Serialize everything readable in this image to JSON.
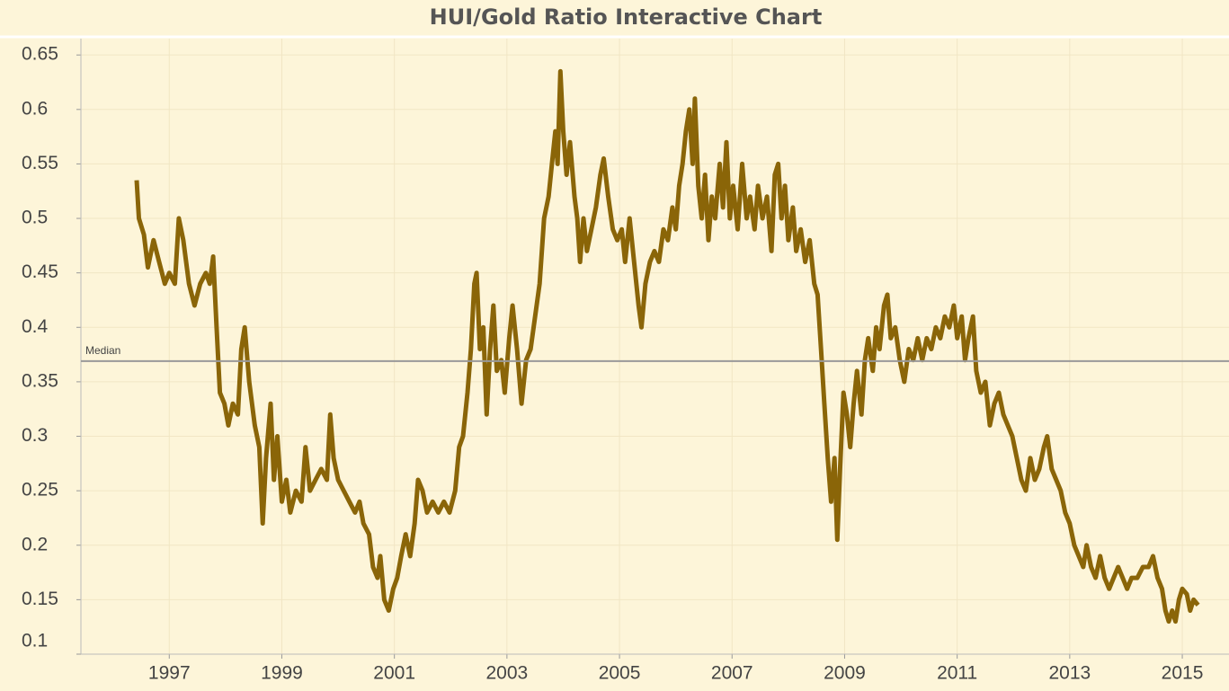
{
  "chart_data": {
    "type": "line",
    "title": "HUI/Gold Ratio Interactive Chart",
    "x": [
      1996.42,
      1996.46,
      1996.55,
      1996.62,
      1996.72,
      1996.82,
      1996.92,
      1997.0,
      1997.1,
      1997.17,
      1997.25,
      1997.35,
      1997.45,
      1997.55,
      1997.65,
      1997.72,
      1997.78,
      1997.84,
      1997.9,
      1997.98,
      1998.05,
      1998.13,
      1998.22,
      1998.28,
      1998.34,
      1998.42,
      1998.52,
      1998.6,
      1998.66,
      1998.72,
      1998.8,
      1998.86,
      1998.92,
      1999.0,
      1999.08,
      1999.15,
      1999.25,
      1999.35,
      1999.42,
      1999.5,
      1999.6,
      1999.7,
      1999.8,
      1999.86,
      1999.92,
      2000.0,
      2000.1,
      2000.2,
      2000.3,
      2000.38,
      2000.45,
      2000.55,
      2000.62,
      2000.7,
      2000.75,
      2000.82,
      2000.9,
      2000.98,
      2001.05,
      2001.12,
      2001.2,
      2001.28,
      2001.36,
      2001.42,
      2001.5,
      2001.58,
      2001.68,
      2001.78,
      2001.88,
      2001.98,
      2002.08,
      2002.15,
      2002.22,
      2002.3,
      2002.36,
      2002.42,
      2002.46,
      2002.52,
      2002.58,
      2002.64,
      2002.7,
      2002.76,
      2002.82,
      2002.9,
      2002.96,
      2003.04,
      2003.1,
      2003.18,
      2003.26,
      2003.34,
      2003.42,
      2003.5,
      2003.58,
      2003.66,
      2003.74,
      2003.8,
      2003.86,
      2003.9,
      2003.95,
      2004.0,
      2004.06,
      2004.12,
      2004.2,
      2004.25,
      2004.3,
      2004.36,
      2004.42,
      2004.5,
      2004.58,
      2004.66,
      2004.72,
      2004.8,
      2004.88,
      2004.96,
      2005.04,
      2005.1,
      2005.18,
      2005.26,
      2005.34,
      2005.39,
      2005.46,
      2005.54,
      2005.62,
      2005.7,
      2005.78,
      2005.86,
      2005.94,
      2006.0,
      2006.06,
      2006.12,
      2006.18,
      2006.24,
      2006.3,
      2006.34,
      2006.4,
      2006.46,
      2006.52,
      2006.58,
      2006.64,
      2006.7,
      2006.78,
      2006.84,
      2006.9,
      2006.96,
      2007.02,
      2007.1,
      2007.18,
      2007.26,
      2007.32,
      2007.4,
      2007.46,
      2007.54,
      2007.62,
      2007.7,
      2007.76,
      2007.82,
      2007.88,
      2007.94,
      2008.0,
      2008.08,
      2008.14,
      2008.22,
      2008.3,
      2008.38,
      2008.46,
      2008.52,
      2008.58,
      2008.64,
      2008.7,
      2008.76,
      2008.82,
      2008.87,
      2008.92,
      2008.98,
      2009.04,
      2009.1,
      2009.16,
      2009.22,
      2009.3,
      2009.36,
      2009.42,
      2009.5,
      2009.56,
      2009.62,
      2009.7,
      2009.76,
      2009.82,
      2009.9,
      2009.98,
      2010.06,
      2010.14,
      2010.22,
      2010.3,
      2010.38,
      2010.46,
      2010.54,
      2010.62,
      2010.7,
      2010.78,
      2010.86,
      2010.94,
      2011.0,
      2011.08,
      2011.14,
      2011.2,
      2011.28,
      2011.34,
      2011.42,
      2011.5,
      2011.58,
      2011.66,
      2011.74,
      2011.82,
      2011.9,
      2011.98,
      2012.06,
      2012.14,
      2012.22,
      2012.3,
      2012.38,
      2012.46,
      2012.54,
      2012.6,
      2012.68,
      2012.76,
      2012.84,
      2012.92,
      2013.0,
      2013.08,
      2013.16,
      2013.24,
      2013.3,
      2013.38,
      2013.46,
      2013.54,
      2013.62,
      2013.7,
      2013.78,
      2013.86,
      2013.94,
      2014.02,
      2014.1,
      2014.2,
      2014.3,
      2014.4,
      2014.48,
      2014.56,
      2014.64,
      2014.7,
      2014.76,
      2014.82,
      2014.88,
      2014.94,
      2015.0,
      2015.08,
      2015.14,
      2015.2,
      2015.28
    ],
    "series": [
      {
        "color": "#8a6508",
        "values": [
          0.535,
          0.5,
          0.485,
          0.455,
          0.48,
          0.46,
          0.44,
          0.45,
          0.44,
          0.5,
          0.48,
          0.44,
          0.42,
          0.44,
          0.45,
          0.44,
          0.465,
          0.4,
          0.34,
          0.33,
          0.31,
          0.33,
          0.32,
          0.38,
          0.4,
          0.35,
          0.31,
          0.29,
          0.22,
          0.28,
          0.33,
          0.26,
          0.3,
          0.24,
          0.26,
          0.23,
          0.25,
          0.24,
          0.29,
          0.25,
          0.26,
          0.27,
          0.26,
          0.32,
          0.28,
          0.26,
          0.25,
          0.24,
          0.23,
          0.24,
          0.22,
          0.21,
          0.18,
          0.17,
          0.19,
          0.15,
          0.14,
          0.16,
          0.17,
          0.19,
          0.21,
          0.19,
          0.22,
          0.26,
          0.25,
          0.23,
          0.24,
          0.23,
          0.24,
          0.23,
          0.25,
          0.29,
          0.3,
          0.34,
          0.38,
          0.44,
          0.45,
          0.38,
          0.4,
          0.32,
          0.38,
          0.42,
          0.36,
          0.37,
          0.34,
          0.39,
          0.42,
          0.38,
          0.33,
          0.37,
          0.38,
          0.41,
          0.44,
          0.5,
          0.52,
          0.55,
          0.58,
          0.55,
          0.635,
          0.58,
          0.54,
          0.57,
          0.52,
          0.5,
          0.46,
          0.5,
          0.47,
          0.49,
          0.51,
          0.54,
          0.555,
          0.52,
          0.49,
          0.48,
          0.49,
          0.46,
          0.5,
          0.46,
          0.42,
          0.4,
          0.44,
          0.46,
          0.47,
          0.46,
          0.49,
          0.48,
          0.51,
          0.49,
          0.53,
          0.55,
          0.58,
          0.6,
          0.55,
          0.61,
          0.53,
          0.5,
          0.54,
          0.48,
          0.52,
          0.5,
          0.55,
          0.51,
          0.57,
          0.5,
          0.53,
          0.49,
          0.55,
          0.5,
          0.52,
          0.49,
          0.53,
          0.5,
          0.52,
          0.47,
          0.54,
          0.55,
          0.5,
          0.53,
          0.48,
          0.51,
          0.47,
          0.49,
          0.46,
          0.48,
          0.44,
          0.43,
          0.38,
          0.33,
          0.28,
          0.24,
          0.28,
          0.205,
          0.27,
          0.34,
          0.32,
          0.29,
          0.33,
          0.36,
          0.32,
          0.37,
          0.39,
          0.36,
          0.4,
          0.38,
          0.42,
          0.43,
          0.39,
          0.4,
          0.37,
          0.35,
          0.38,
          0.37,
          0.39,
          0.37,
          0.39,
          0.38,
          0.4,
          0.39,
          0.41,
          0.4,
          0.42,
          0.39,
          0.41,
          0.37,
          0.39,
          0.41,
          0.36,
          0.34,
          0.35,
          0.31,
          0.33,
          0.34,
          0.32,
          0.31,
          0.3,
          0.28,
          0.26,
          0.25,
          0.28,
          0.26,
          0.27,
          0.29,
          0.3,
          0.27,
          0.26,
          0.25,
          0.23,
          0.22,
          0.2,
          0.19,
          0.18,
          0.2,
          0.18,
          0.17,
          0.19,
          0.17,
          0.16,
          0.17,
          0.18,
          0.17,
          0.16,
          0.17,
          0.17,
          0.18,
          0.18,
          0.19,
          0.17,
          0.16,
          0.14,
          0.13,
          0.14,
          0.13,
          0.15,
          0.16,
          0.155,
          0.14,
          0.15,
          0.145
        ]
      }
    ],
    "xlim": [
      1995.43,
      2015.83
    ],
    "xticks": [
      1997,
      1999,
      2001,
      2003,
      2005,
      2007,
      2009,
      2011,
      2013,
      2015
    ],
    "ylim": [
      0.1,
      0.665
    ],
    "yticks": [
      0.1,
      0.15,
      0.2,
      0.25,
      0.3,
      0.35,
      0.4,
      0.45,
      0.5,
      0.55,
      0.6,
      0.65
    ],
    "reference_lines": [
      {
        "label": "Median",
        "value": 0.369
      }
    ],
    "grid": true
  }
}
